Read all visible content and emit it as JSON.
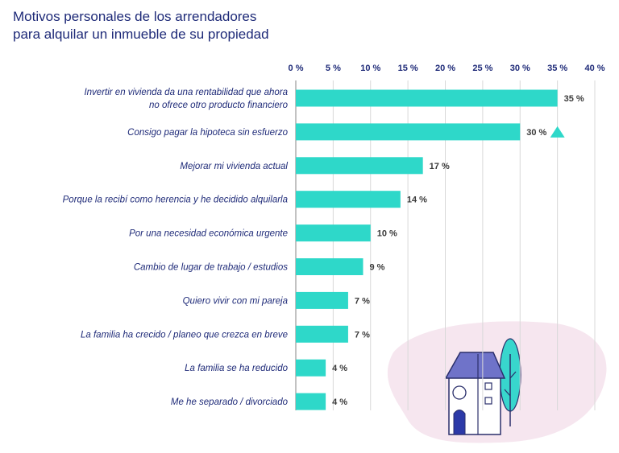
{
  "page": {
    "title_line1": "Motivos personales de los arrendadores",
    "title_line2": "para alquilar un inmueble de su propiedad"
  },
  "colors": {
    "bar": "#2ed8c9",
    "text": "#1e2a78",
    "grid": "#d9d9d9",
    "blob": "#f6e6ef",
    "house_roof": "#6f73c9",
    "tree": "#38d6cd"
  },
  "chart_data": {
    "type": "bar",
    "orientation": "horizontal",
    "title": "Motivos personales de los arrendadores para alquilar un inmueble de su propiedad",
    "xlim": [
      0,
      40
    ],
    "tick_values": [
      0,
      5,
      10,
      15,
      20,
      25,
      30,
      35,
      40
    ],
    "tick_labels": [
      "0 %",
      "5 %",
      "10 %",
      "15 %",
      "20 %",
      "25 %",
      "30 %",
      "35 %",
      "40 %"
    ],
    "categories": [
      [
        "Invertir en vivienda da una rentabilidad que ahora",
        "no ofrece otro producto financiero"
      ],
      [
        "Consigo pagar la hipoteca sin esfuerzo"
      ],
      [
        "Mejorar mi vivienda actual"
      ],
      [
        "Porque la recibí como herencia y he decidido alquilarla"
      ],
      [
        "Por una necesidad económica urgente"
      ],
      [
        "Cambio de lugar de trabajo / estudios"
      ],
      [
        "Quiero vivir con mi pareja"
      ],
      [
        "La familia ha crecido / planeo que crezca en breve"
      ],
      [
        "La familia se ha reducido"
      ],
      [
        "Me he separado / divorciado"
      ]
    ],
    "values": [
      35,
      30,
      17,
      14,
      10,
      9,
      7,
      7,
      4,
      4
    ],
    "value_labels": [
      "35 %",
      "30 %",
      "17 %",
      "14 %",
      "10 %",
      "9 %",
      "7 %",
      "7 %",
      "4 %",
      "4 %"
    ],
    "marker": {
      "category_index": 1,
      "symbol": "triangle-up",
      "at_value": 35
    },
    "grid": true,
    "legend": "none"
  }
}
